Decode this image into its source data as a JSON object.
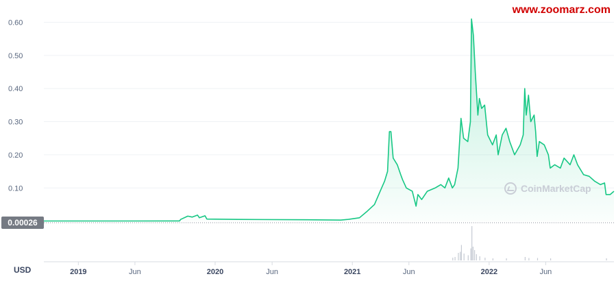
{
  "watermark": "www.zoomarz.com",
  "brand": "CoinMarketCap",
  "current_price_label": "0.00026",
  "currency": "USD",
  "colors": {
    "line": "#16c784",
    "fill": "#16c784",
    "volume": "#c5cad3",
    "grid": "#eff2f5",
    "price_tag": "#757a83"
  },
  "chart_data": {
    "type": "area",
    "y_ticks": [
      "0.60",
      "0.50",
      "0.40",
      "0.30",
      "0.20",
      "0.10"
    ],
    "y_tick_values": [
      0.6,
      0.5,
      0.4,
      0.3,
      0.2,
      0.1
    ],
    "ylim": [
      -0.007,
      0.63
    ],
    "xlim": [
      "2018-10-01",
      "2022-11-30"
    ],
    "x_ticks": [
      {
        "label": "2019",
        "date": "2019-01-01",
        "major": true
      },
      {
        "label": "Jun",
        "date": "2019-06-01",
        "major": false
      },
      {
        "label": "2020",
        "date": "2020-01-01",
        "major": true
      },
      {
        "label": "Jun",
        "date": "2020-06-01",
        "major": false
      },
      {
        "label": "2021",
        "date": "2021-01-01",
        "major": true
      },
      {
        "label": "Jun",
        "date": "2021-06-01",
        "major": false
      },
      {
        "label": "2022",
        "date": "2022-01-01",
        "major": true
      },
      {
        "label": "Jun",
        "date": "2022-06-01",
        "major": false
      }
    ],
    "series": [
      {
        "points": [
          [
            "2018-10-01",
            0.0003
          ],
          [
            "2019-06-01",
            0.0003
          ],
          [
            "2019-09-28",
            0.0005
          ],
          [
            "2019-10-01",
            0.005
          ],
          [
            "2019-10-20",
            0.015
          ],
          [
            "2019-11-01",
            0.012
          ],
          [
            "2019-11-15",
            0.018
          ],
          [
            "2019-11-20",
            0.01
          ],
          [
            "2019-12-05",
            0.016
          ],
          [
            "2019-12-10",
            0.006
          ],
          [
            "2020-03-01",
            0.005
          ],
          [
            "2020-09-01",
            0.004
          ],
          [
            "2020-12-01",
            0.003
          ],
          [
            "2020-12-20",
            0.005
          ],
          [
            "2021-01-20",
            0.01
          ],
          [
            "2021-02-10",
            0.03
          ],
          [
            "2021-03-01",
            0.05
          ],
          [
            "2021-03-20",
            0.1
          ],
          [
            "2021-03-28",
            0.12
          ],
          [
            "2021-04-05",
            0.15
          ],
          [
            "2021-04-10",
            0.27
          ],
          [
            "2021-04-14",
            0.27
          ],
          [
            "2021-04-20",
            0.19
          ],
          [
            "2021-05-01",
            0.17
          ],
          [
            "2021-05-10",
            0.14
          ],
          [
            "2021-05-15",
            0.125
          ],
          [
            "2021-05-25",
            0.1
          ],
          [
            "2021-06-10",
            0.09
          ],
          [
            "2021-06-20",
            0.045
          ],
          [
            "2021-06-25",
            0.08
          ],
          [
            "2021-07-05",
            0.065
          ],
          [
            "2021-07-20",
            0.09
          ],
          [
            "2021-08-10",
            0.1
          ],
          [
            "2021-08-25",
            0.11
          ],
          [
            "2021-09-05",
            0.1
          ],
          [
            "2021-09-15",
            0.13
          ],
          [
            "2021-09-25",
            0.1
          ],
          [
            "2021-10-01",
            0.11
          ],
          [
            "2021-10-10",
            0.16
          ],
          [
            "2021-10-18",
            0.31
          ],
          [
            "2021-10-25",
            0.25
          ],
          [
            "2021-11-05",
            0.24
          ],
          [
            "2021-11-12",
            0.3
          ],
          [
            "2021-11-15",
            0.61
          ],
          [
            "2021-11-20",
            0.56
          ],
          [
            "2021-11-25",
            0.45
          ],
          [
            "2021-12-02",
            0.32
          ],
          [
            "2021-12-06",
            0.37
          ],
          [
            "2021-12-12",
            0.34
          ],
          [
            "2021-12-20",
            0.35
          ],
          [
            "2021-12-28",
            0.26
          ],
          [
            "2022-01-10",
            0.23
          ],
          [
            "2022-01-20",
            0.26
          ],
          [
            "2022-01-25",
            0.2
          ],
          [
            "2022-02-05",
            0.26
          ],
          [
            "2022-02-15",
            0.28
          ],
          [
            "2022-02-25",
            0.24
          ],
          [
            "2022-03-10",
            0.2
          ],
          [
            "2022-03-25",
            0.23
          ],
          [
            "2022-04-02",
            0.26
          ],
          [
            "2022-04-06",
            0.4
          ],
          [
            "2022-04-10",
            0.32
          ],
          [
            "2022-04-16",
            0.38
          ],
          [
            "2022-04-22",
            0.3
          ],
          [
            "2022-05-01",
            0.32
          ],
          [
            "2022-05-05",
            0.27
          ],
          [
            "2022-05-09",
            0.195
          ],
          [
            "2022-05-15",
            0.24
          ],
          [
            "2022-05-28",
            0.23
          ],
          [
            "2022-06-08",
            0.2
          ],
          [
            "2022-06-13",
            0.16
          ],
          [
            "2022-06-25",
            0.17
          ],
          [
            "2022-07-10",
            0.16
          ],
          [
            "2022-07-20",
            0.19
          ],
          [
            "2022-08-05",
            0.17
          ],
          [
            "2022-08-15",
            0.2
          ],
          [
            "2022-08-25",
            0.17
          ],
          [
            "2022-09-10",
            0.14
          ],
          [
            "2022-09-25",
            0.135
          ],
          [
            "2022-10-10",
            0.12
          ],
          [
            "2022-10-25",
            0.11
          ],
          [
            "2022-11-05",
            0.115
          ],
          [
            "2022-11-09",
            0.08
          ],
          [
            "2022-11-20",
            0.08
          ],
          [
            "2022-11-30",
            0.09
          ]
        ]
      }
    ],
    "volume": [
      [
        "2021-09-25",
        0.08
      ],
      [
        "2021-10-01",
        0.1
      ],
      [
        "2021-10-10",
        0.22
      ],
      [
        "2021-10-15",
        0.25
      ],
      [
        "2021-10-18",
        0.45
      ],
      [
        "2021-10-25",
        0.2
      ],
      [
        "2021-11-05",
        0.15
      ],
      [
        "2021-11-12",
        0.35
      ],
      [
        "2021-11-15",
        1.0
      ],
      [
        "2021-11-18",
        0.4
      ],
      [
        "2021-11-22",
        0.3
      ],
      [
        "2021-11-27",
        0.18
      ],
      [
        "2021-12-06",
        0.12
      ],
      [
        "2021-12-20",
        0.08
      ],
      [
        "2022-01-10",
        0.06
      ],
      [
        "2022-02-15",
        0.06
      ],
      [
        "2022-04-06",
        0.1
      ],
      [
        "2022-04-16",
        0.07
      ],
      [
        "2022-05-09",
        0.07
      ],
      [
        "2022-06-13",
        0.06
      ],
      [
        "2022-11-09",
        0.06
      ]
    ],
    "grid": true
  }
}
